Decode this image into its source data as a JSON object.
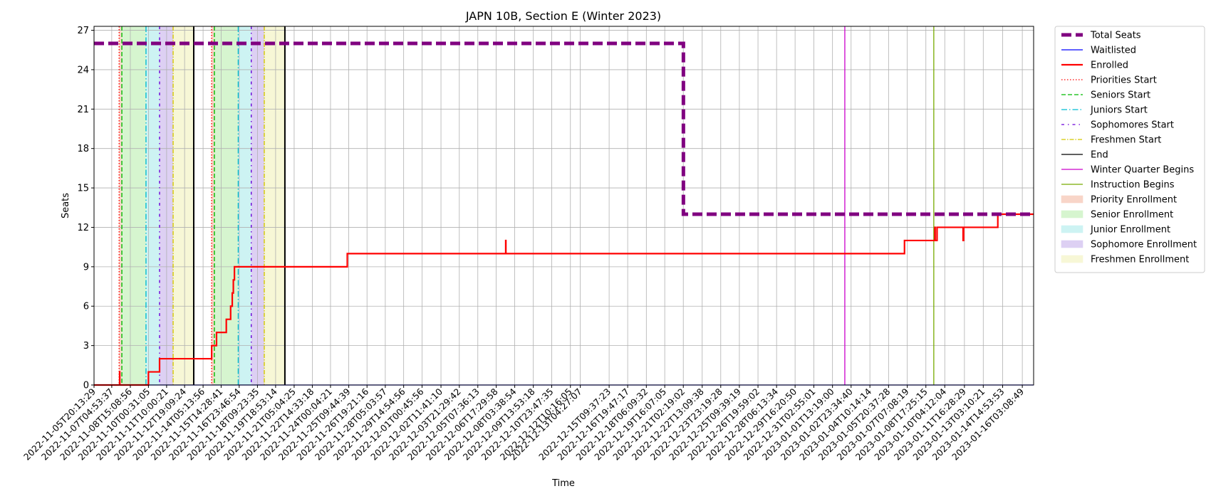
{
  "chart_data": {
    "type": "line",
    "title": "JAPN 10B, Section E (Winter 2023)",
    "xlabel": "Time",
    "ylabel": "Seats",
    "ylim": [
      0,
      27.3
    ],
    "yticks": [
      0,
      3,
      6,
      9,
      12,
      15,
      18,
      21,
      24,
      27
    ],
    "xlim": [
      "2022-11-05T20:13:29",
      "2023-01-17T00:00:00"
    ],
    "xticks": [
      "2022-11-05T20:13:29",
      "2022-11-07T04:53:37",
      "2022-11-08T15:08:56",
      "2022-11-10T00:31:05",
      "2022-11-11T10:00:21",
      "2022-11-12T19:09:24",
      "2022-11-14T05:13:56",
      "2022-11-15T14:28:41",
      "2022-11-16T23:46:54",
      "2022-11-18T09:23:35",
      "2022-11-19T18:53:14",
      "2022-11-21T05:04:25",
      "2022-11-22T14:33:18",
      "2022-11-24T00:04:21",
      "2022-11-25T09:44:39",
      "2022-11-26T19:21:16",
      "2022-11-28T05:03:57",
      "2022-11-29T14:54:56",
      "2022-12-01T00:45:56",
      "2022-12-02T11:41:10",
      "2022-12-03T21:29:42",
      "2022-12-05T07:36:13",
      "2022-12-06T17:29:58",
      "2022-12-08T03:38:54",
      "2022-12-09T13:53:18",
      "2022-12-10T23:47:35",
      "2022-12-12T10:16:05",
      "2022-12-13T04:27:07",
      "2022-12-15T09:37:23",
      "2022-12-16T19:47:17",
      "2022-12-18T06:09:32",
      "2022-12-19T16:07:05",
      "2022-12-21T02:19:02",
      "2022-12-22T13:09:38",
      "2022-12-23T23:19:28",
      "2022-12-25T09:39:19",
      "2022-12-26T19:59:02",
      "2022-12-28T06:13:34",
      "2022-12-29T16:20:50",
      "2022-12-31T02:55:01",
      "2023-01-01T13:19:00",
      "2023-01-02T23:34:40",
      "2023-01-04T10:14:14",
      "2023-01-05T20:37:28",
      "2023-01-07T07:08:19",
      "2023-01-08T17:25:15",
      "2023-01-10T04:12:04",
      "2023-01-11T16:28:29",
      "2023-01-13T03:10:21",
      "2023-01-14T14:53:53",
      "2023-01-16T03:08:49"
    ],
    "grid": true,
    "legend_position": "outside right, top",
    "series": [
      {
        "name": "Total Seats",
        "color": "#800080",
        "style": "dashed-thick",
        "points": [
          [
            "2022-11-05T20:13:29",
            26
          ],
          [
            "2022-12-21T02:30:00",
            26
          ],
          [
            "2022-12-21T02:30:00",
            13
          ],
          [
            "2023-01-17T00:00:00",
            13
          ]
        ]
      },
      {
        "name": "Waitlisted",
        "color": "#0000ff",
        "style": "solid",
        "points": [
          [
            "2022-11-05T20:13:29",
            0
          ],
          [
            "2023-01-17T00:00:00",
            0
          ]
        ]
      },
      {
        "name": "Enrolled",
        "color": "#ff0000",
        "style": "solid-thick",
        "points": [
          [
            "2022-11-05T20:13:29",
            0
          ],
          [
            "2022-11-07T19:25:00",
            0
          ],
          [
            "2022-11-07T19:25:00",
            1
          ],
          [
            "2022-11-07T19:35:00",
            1
          ],
          [
            "2022-11-07T19:35:00",
            0
          ],
          [
            "2022-11-10T00:30:00",
            0
          ],
          [
            "2022-11-10T00:30:00",
            1
          ],
          [
            "2022-11-10T21:00:00",
            1
          ],
          [
            "2022-11-10T21:00:00",
            2
          ],
          [
            "2022-11-14T21:00:00",
            2
          ],
          [
            "2022-11-14T21:00:00",
            3
          ],
          [
            "2022-11-15T06:00:00",
            3
          ],
          [
            "2022-11-15T06:00:00",
            4
          ],
          [
            "2022-11-16T00:00:00",
            4
          ],
          [
            "2022-11-16T00:00:00",
            5
          ],
          [
            "2022-11-16T08:00:00",
            5
          ],
          [
            "2022-11-16T08:00:00",
            6
          ],
          [
            "2022-11-16T11:00:00",
            6
          ],
          [
            "2022-11-16T11:00:00",
            7
          ],
          [
            "2022-11-16T13:00:00",
            7
          ],
          [
            "2022-11-16T13:00:00",
            8
          ],
          [
            "2022-11-16T15:00:00",
            8
          ],
          [
            "2022-11-16T15:00:00",
            9
          ],
          [
            "2022-11-25T07:00:00",
            9
          ],
          [
            "2022-11-25T07:00:00",
            10
          ],
          [
            "2022-12-07T11:00:00",
            10
          ],
          [
            "2022-12-07T11:00:00",
            11
          ],
          [
            "2022-12-07T11:20:00",
            11
          ],
          [
            "2022-12-07T11:20:00",
            10
          ],
          [
            "2023-01-07T02:00:00",
            10
          ],
          [
            "2023-01-07T02:00:00",
            11
          ],
          [
            "2023-01-09T10:00:00",
            11
          ],
          [
            "2023-01-09T10:00:00",
            12
          ],
          [
            "2023-01-09T10:30:00",
            12
          ],
          [
            "2023-01-09T10:30:00",
            11
          ],
          [
            "2023-01-09T14:00:00",
            11
          ],
          [
            "2023-01-09T14:00:00",
            12
          ],
          [
            "2023-01-11T14:00:00",
            12
          ],
          [
            "2023-01-11T14:00:00",
            11
          ],
          [
            "2023-01-11T15:00:00",
            11
          ],
          [
            "2023-01-11T15:00:00",
            12
          ],
          [
            "2023-01-14T06:00:00",
            12
          ],
          [
            "2023-01-14T06:00:00",
            13
          ],
          [
            "2023-01-17T00:00:00",
            13
          ]
        ]
      }
    ],
    "vertical_lines": [
      {
        "name": "Priorities Start",
        "color": "#ff0000",
        "style": "dotted",
        "x": [
          "2022-11-07T18:30:00",
          "2022-11-14T21:00:00"
        ]
      },
      {
        "name": "Seniors Start",
        "color": "#00bb00",
        "style": "dashed",
        "x": [
          "2022-11-07T23:30:00",
          "2022-11-15T02:00:00"
        ]
      },
      {
        "name": "Juniors Start",
        "color": "#00bcd4",
        "style": "dashdot",
        "x": [
          "2022-11-09T20:00:00",
          "2022-11-16T22:00:00"
        ]
      },
      {
        "name": "Sophomores Start",
        "color": "#6a00d9",
        "style": "dashdot2",
        "x": [
          "2022-11-10T21:00:00",
          "2022-11-17T22:00:00"
        ]
      },
      {
        "name": "Freshmen Start",
        "color": "#d4c800",
        "style": "dashdot-thin",
        "x": [
          "2022-11-11T22:00:00",
          "2022-11-18T22:00:00"
        ]
      },
      {
        "name": "End",
        "color": "#000000",
        "style": "solid",
        "x": [
          "2022-11-13T12:00:00",
          "2022-11-20T12:00:00"
        ]
      },
      {
        "name": "Winter Quarter Begins",
        "color": "#cc00cc",
        "style": "solid",
        "x": [
          "2023-01-02T12:00:00"
        ]
      },
      {
        "name": "Instruction Begins",
        "color": "#77aa00",
        "style": "solid",
        "x": [
          "2023-01-09T08:00:00"
        ]
      }
    ],
    "spans": [
      {
        "name": "Priority Enrollment",
        "color": "#f8d5c8",
        "ranges": [
          [
            "2022-11-07T18:30:00",
            "2022-11-07T23:30:00"
          ],
          [
            "2022-11-14T21:00:00",
            "2022-11-15T02:00:00"
          ]
        ]
      },
      {
        "name": "Senior Enrollment",
        "color": "#d6f5cf",
        "ranges": [
          [
            "2022-11-07T23:30:00",
            "2022-11-09T20:00:00"
          ],
          [
            "2022-11-15T02:00:00",
            "2022-11-16T22:00:00"
          ]
        ]
      },
      {
        "name": "Junior Enrollment",
        "color": "#cdf3f3",
        "ranges": [
          [
            "2022-11-09T20:00:00",
            "2022-11-10T21:00:00"
          ],
          [
            "2022-11-16T22:00:00",
            "2022-11-17T22:00:00"
          ]
        ]
      },
      {
        "name": "Sophomore Enrollment",
        "color": "#ddd0f3",
        "ranges": [
          [
            "2022-11-10T21:00:00",
            "2022-11-11T22:00:00"
          ],
          [
            "2022-11-17T22:00:00",
            "2022-11-18T22:00:00"
          ]
        ]
      },
      {
        "name": "Freshmen Enrollment",
        "color": "#f7f7d6",
        "ranges": [
          [
            "2022-11-11T22:00:00",
            "2022-11-13T12:00:00"
          ],
          [
            "2022-11-18T22:00:00",
            "2022-11-20T12:00:00"
          ]
        ]
      }
    ],
    "legend": [
      {
        "label": "Total Seats",
        "kind": "line",
        "color": "#800080",
        "style": "dashed-thick"
      },
      {
        "label": "Waitlisted",
        "kind": "line",
        "color": "#0000ff",
        "style": "solid"
      },
      {
        "label": "Enrolled",
        "kind": "line",
        "color": "#ff0000",
        "style": "solid-thick"
      },
      {
        "label": "Priorities Start",
        "kind": "line",
        "color": "#ff0000",
        "style": "dotted"
      },
      {
        "label": "Seniors Start",
        "kind": "line",
        "color": "#00bb00",
        "style": "dashed"
      },
      {
        "label": "Juniors Start",
        "kind": "line",
        "color": "#00bcd4",
        "style": "dashdot"
      },
      {
        "label": "Sophomores Start",
        "kind": "line",
        "color": "#6a00d9",
        "style": "dashdot2"
      },
      {
        "label": "Freshmen Start",
        "kind": "line",
        "color": "#d4c800",
        "style": "dashdot-thin"
      },
      {
        "label": "End",
        "kind": "line",
        "color": "#000000",
        "style": "solid"
      },
      {
        "label": "Winter Quarter Begins",
        "kind": "line",
        "color": "#cc00cc",
        "style": "solid"
      },
      {
        "label": "Instruction Begins",
        "kind": "line",
        "color": "#77aa00",
        "style": "solid"
      },
      {
        "label": "Priority Enrollment",
        "kind": "patch",
        "color": "#f8d5c8"
      },
      {
        "label": "Senior Enrollment",
        "kind": "patch",
        "color": "#d6f5cf"
      },
      {
        "label": "Junior Enrollment",
        "kind": "patch",
        "color": "#cdf3f3"
      },
      {
        "label": "Sophomore Enrollment",
        "kind": "patch",
        "color": "#ddd0f3"
      },
      {
        "label": "Freshmen Enrollment",
        "kind": "patch",
        "color": "#f7f7d6"
      }
    ]
  }
}
